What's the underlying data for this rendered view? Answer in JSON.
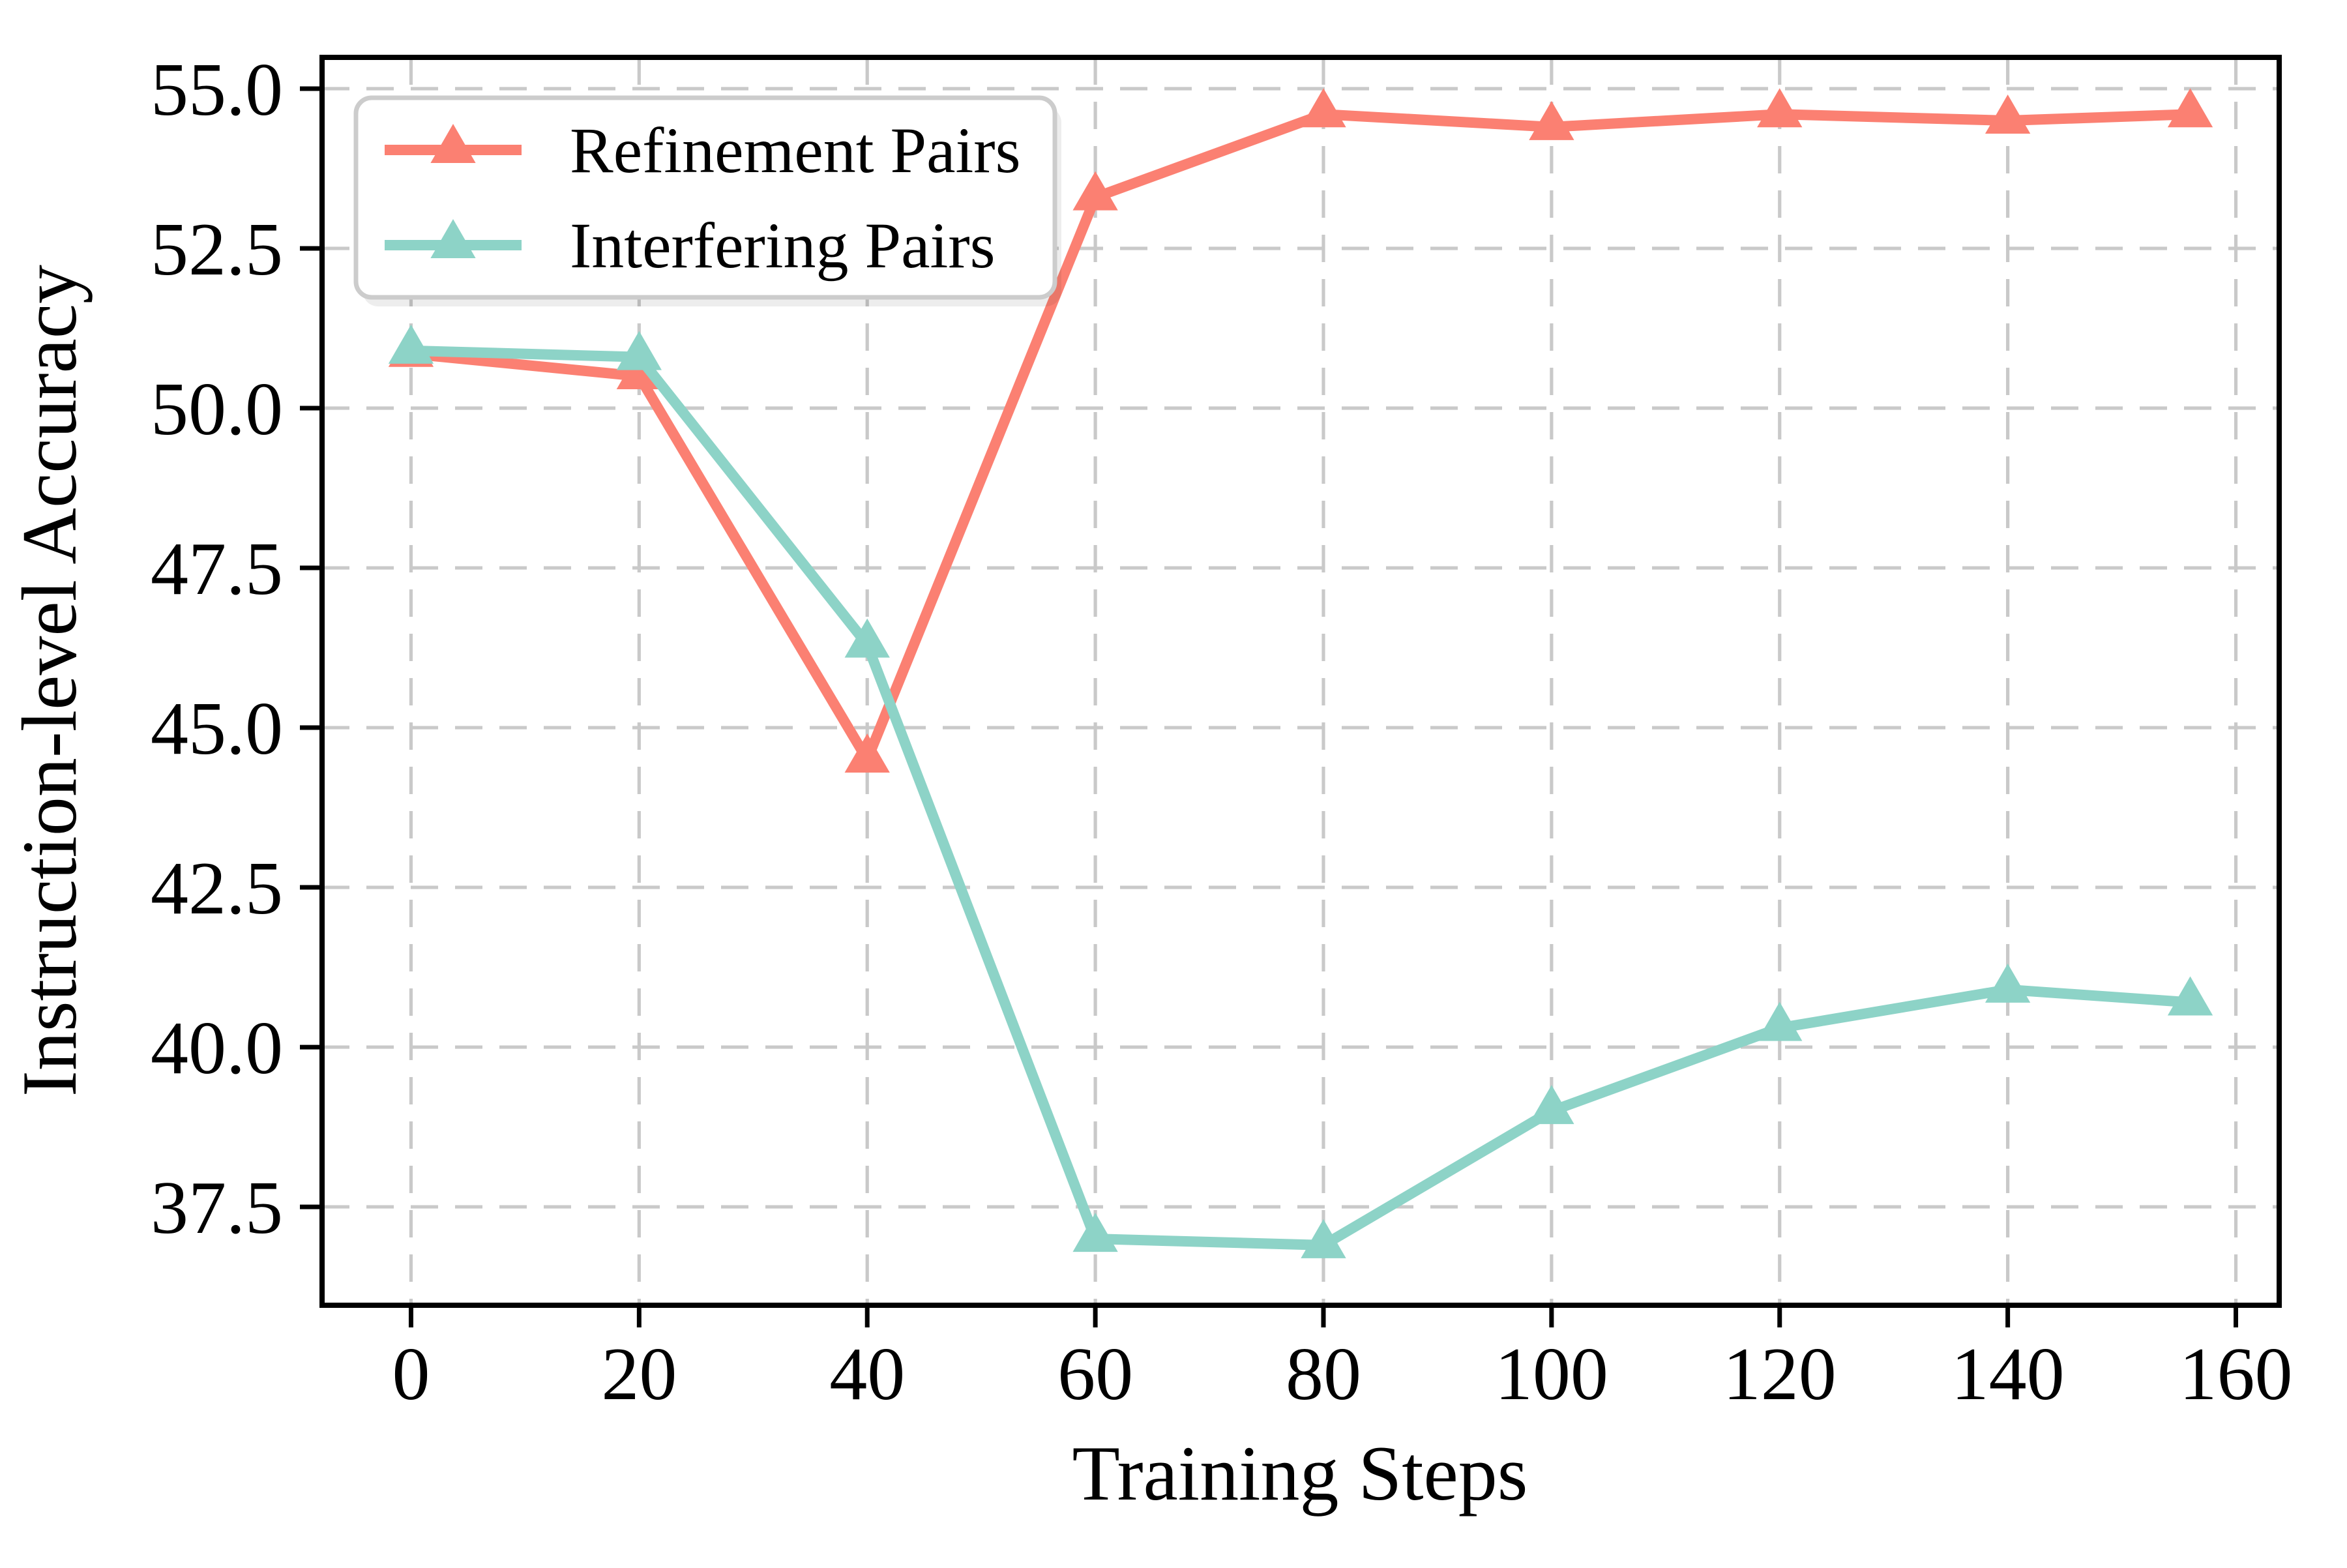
{
  "figure": {
    "background_color": "#ffffff",
    "grid_color": "#c9c9c9",
    "spine_color": "#000000",
    "text_color": "#000000"
  },
  "legend": {
    "items": [
      {
        "label": "Refinement Pairs",
        "color": "#fb8072",
        "marker": "triangle-up"
      },
      {
        "label": "Interfering Pairs",
        "color": "#8dd3c7",
        "marker": "triangle-up"
      }
    ]
  },
  "chart_data": {
    "type": "line",
    "title": "",
    "xlabel": "Training Steps",
    "ylabel": "Instruction-level Accuracy",
    "x": [
      0,
      20,
      40,
      60,
      80,
      100,
      120,
      140,
      156
    ],
    "series": [
      {
        "name": "Refinement Pairs",
        "color": "#fb8072",
        "marker": "triangle-up",
        "values": [
          50.85,
          50.5,
          44.5,
          53.3,
          54.6,
          54.4,
          54.6,
          54.5,
          54.6
        ]
      },
      {
        "name": "Interfering Pairs",
        "color": "#8dd3c7",
        "marker": "triangle-up",
        "values": [
          50.9,
          50.8,
          46.3,
          37.0,
          36.9,
          39.0,
          40.3,
          40.9,
          40.7
        ]
      }
    ],
    "xticks": [
      0,
      20,
      40,
      60,
      80,
      100,
      120,
      140,
      160
    ],
    "xtick_labels": [
      "0",
      "20",
      "40",
      "60",
      "80",
      "100",
      "120",
      "140",
      "160"
    ],
    "yticks": [
      37.5,
      40.0,
      42.5,
      45.0,
      47.5,
      50.0,
      52.5,
      55.0
    ],
    "ytick_labels": [
      "37.5",
      "40.0",
      "42.5",
      "45.0",
      "47.5",
      "50.0",
      "52.5",
      "55.0"
    ],
    "xlim": [
      -7.8,
      163.8
    ],
    "ylim": [
      35.96,
      55.49
    ],
    "grid": "both-dashed",
    "legend_position": "upper-left"
  }
}
